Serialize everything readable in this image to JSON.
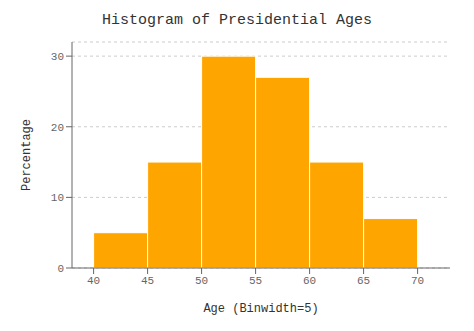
{
  "chart_data": {
    "type": "histogram",
    "title": "Histogram of Presidential Ages",
    "xlabel": "Age (Binwidth=5)",
    "ylabel": "Percentage",
    "bins": [
      40,
      45,
      50,
      55,
      60,
      65,
      70
    ],
    "values": [
      5,
      15,
      30,
      27,
      15,
      7
    ],
    "color": "#FFA500",
    "xlim": [
      38,
      73
    ],
    "xticks": [
      40,
      45,
      50,
      55,
      60,
      65,
      70
    ],
    "ylim": [
      0,
      32
    ],
    "yticks": [
      0,
      10,
      20,
      30
    ],
    "grid": true
  }
}
